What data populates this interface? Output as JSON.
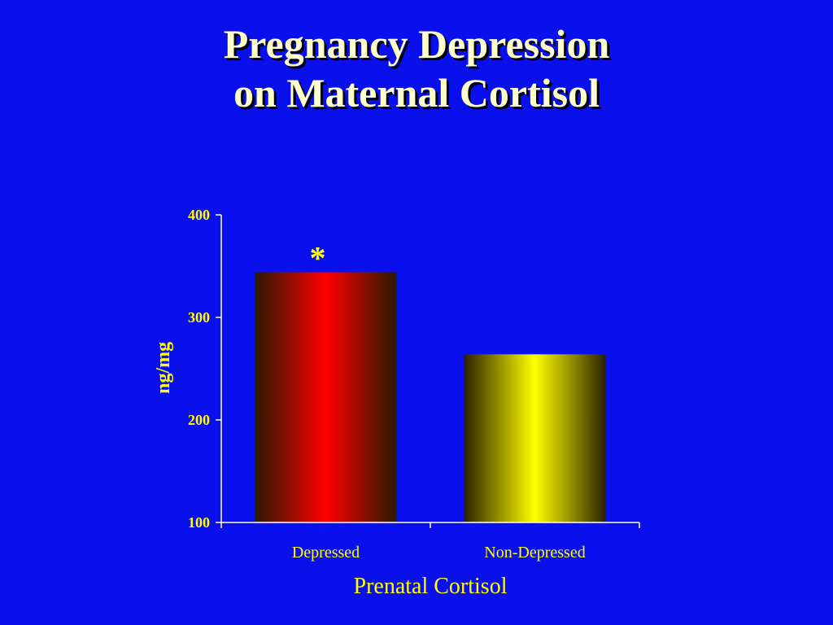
{
  "slide": {
    "title_line1": "Pregnancy Depression",
    "title_line2": "on Maternal Cortisol"
  },
  "chart_data": {
    "type": "bar",
    "categories": [
      "Depressed",
      "Non-Depressed"
    ],
    "values": [
      344,
      264
    ],
    "xlabel": "Prenatal Cortisol",
    "ylabel": "ng/mg",
    "ylim": [
      100,
      400
    ],
    "yticks": [
      "100",
      "200",
      "300",
      "400"
    ],
    "annotations": [
      {
        "category": "Depressed",
        "text": "*"
      }
    ],
    "colors": {
      "Depressed": "#ff0000",
      "Non-Depressed": "#ffff00"
    },
    "grid": false,
    "legend": "none"
  }
}
